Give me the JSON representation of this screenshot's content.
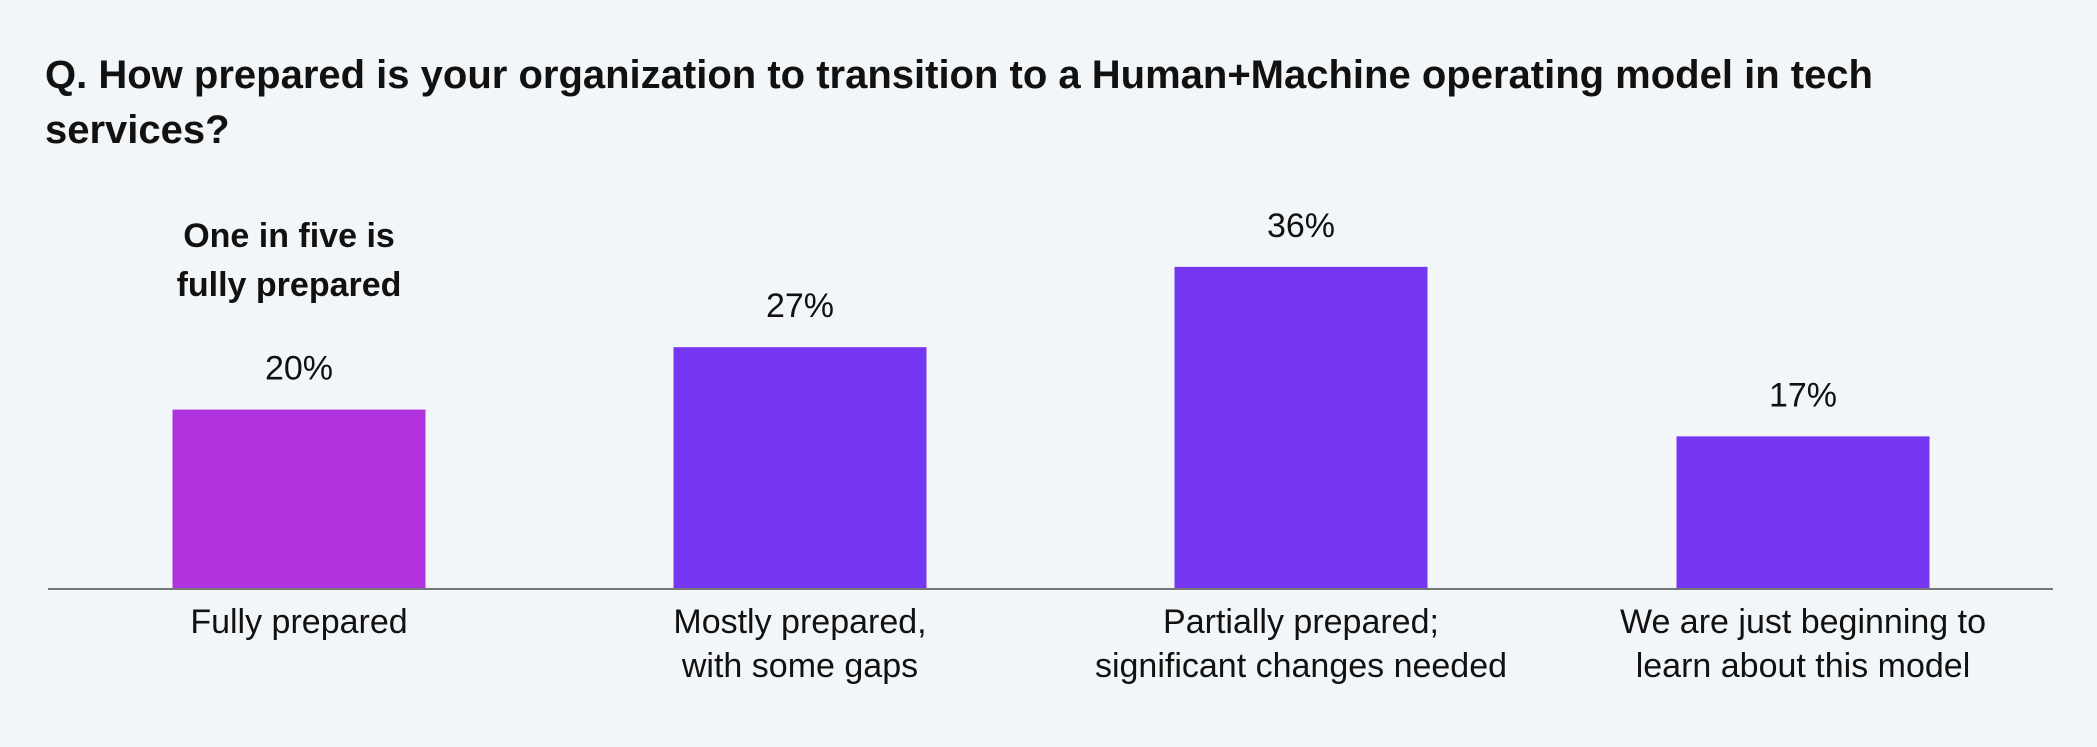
{
  "title": "Q. How prepared is your organization to transition to a Human+Machine operating model in tech services?",
  "colors": {
    "background": "#f3f6f9",
    "highlight_bar": "#b133e0",
    "bar": "#7637f3",
    "axis": "#777777"
  },
  "chart_data": {
    "type": "bar",
    "title": "Q. How prepared is your organization to transition to a Human+Machine operating model in tech services?",
    "categories": [
      [
        "Fully prepared"
      ],
      [
        "Mostly prepared,",
        "with some gaps"
      ],
      [
        "Partially prepared;",
        "significant changes needed"
      ],
      [
        "We are just beginning to",
        "learn about this model"
      ]
    ],
    "values": [
      20,
      27,
      36,
      17
    ],
    "value_labels": [
      "20%",
      "27%",
      "36%",
      "17%"
    ],
    "unit": "%",
    "highlight_index": 0,
    "annotation": [
      "One in five is",
      "fully prepared"
    ],
    "xlabel": "",
    "ylabel": "",
    "grid": false,
    "legend": "none"
  }
}
